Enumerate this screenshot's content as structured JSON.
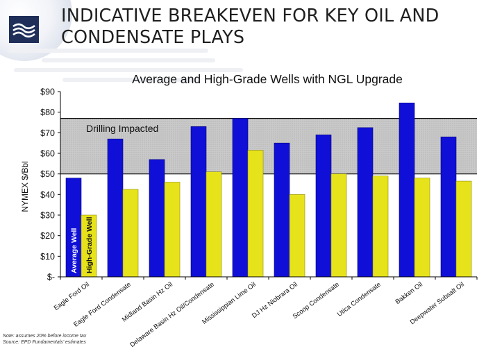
{
  "slide": {
    "title": "INDICATIVE BREAKEVEN FOR KEY OIL AND CONDENSATE PLAYS",
    "title_lines": [
      "INDICATIVE BREAKEVEN FOR KEY OIL AND",
      "CONDENSATE PLAYS"
    ],
    "logo_icon": "wave-lines-icon",
    "footnote_lines": [
      "Note:  assumes 20% before income tax",
      "Source:  EPD Fundamentals’ estimates"
    ]
  },
  "colors": {
    "average": "#0f0fd8",
    "high_grade": "#e7e31a",
    "band_fill": "#c9c9c9",
    "logo": "#1f2f5a"
  },
  "chart_data": {
    "type": "bar",
    "title": "Average and High-Grade Wells with NGL Upgrade",
    "xlabel": "",
    "ylabel": "NYMEX $/Bbl",
    "ylim": [
      0,
      90
    ],
    "yticks": [
      0,
      10,
      20,
      30,
      40,
      50,
      60,
      70,
      80,
      90
    ],
    "ytick_labels": [
      "$-",
      "$10",
      "$20",
      "$30",
      "$40",
      "$50",
      "$60",
      "$70",
      "$80",
      "$90"
    ],
    "categories": [
      "Eagle Ford Oil",
      "Eagle Ford Condensate",
      "Midland Basin Hz Oil",
      "Delaware Basin Hz Oil/Condensate",
      "Mississippian Lime Oil",
      "DJ Hz Niobrara Oil",
      "Scoop Condensate",
      "Utica Condensate",
      "Bakken Oil",
      "Deepwater Subsalt Oil"
    ],
    "series": [
      {
        "name": "Average Well",
        "color": "#0f0fd8",
        "values": [
          48,
          67,
          57,
          73,
          77,
          65,
          69,
          72.5,
          84.5,
          68
        ]
      },
      {
        "name": "High-Grade Well",
        "color": "#e7e31a",
        "values": [
          30,
          42.5,
          46,
          51,
          61.5,
          40,
          50,
          49,
          48,
          46.5
        ]
      }
    ],
    "band": {
      "label": "Drilling Impacted",
      "from": 50,
      "to": 77
    },
    "grid": false,
    "legend": "none (series names written inside first bars)"
  }
}
